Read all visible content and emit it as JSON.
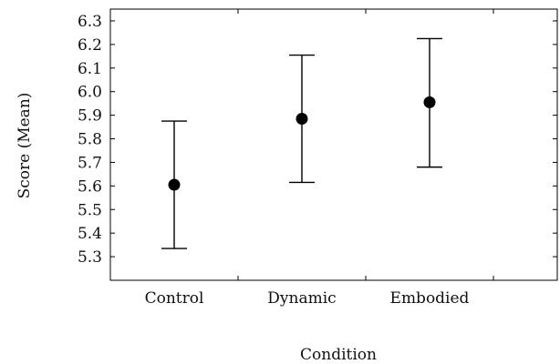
{
  "chart_data": {
    "type": "scatter",
    "xlabel": "Condition",
    "ylabel": "Score (Mean)",
    "categories": [
      "Control",
      "Dynamic",
      "Embodied"
    ],
    "series": [
      {
        "values": [
          5.605,
          5.885,
          5.955
        ],
        "error_low": [
          5.335,
          5.615,
          5.68
        ],
        "error_high": [
          5.875,
          6.155,
          6.225
        ]
      }
    ],
    "y_ticks": [
      "5.3",
      "5.4",
      "5.5",
      "5.6",
      "5.7",
      "5.8",
      "5.9",
      "6.0",
      "6.1",
      "6.2",
      "6.3"
    ],
    "ylim": [
      5.2,
      6.35
    ],
    "xlim": [
      0.5,
      4
    ],
    "grid": false,
    "legend": "none"
  }
}
